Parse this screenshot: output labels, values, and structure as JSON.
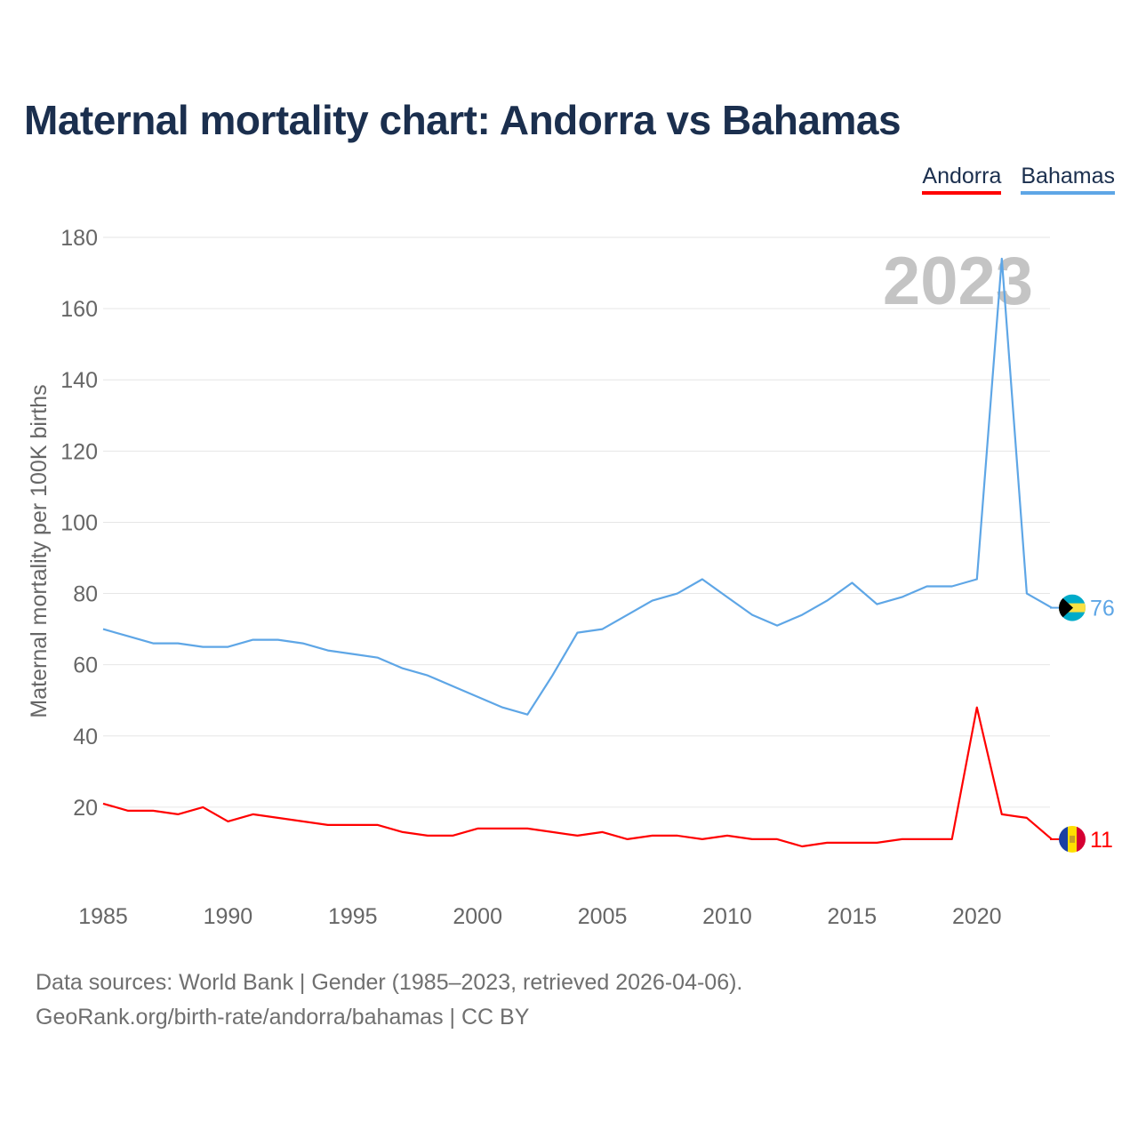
{
  "title": "Maternal mortality chart: Andorra vs Bahamas",
  "legend": {
    "andorra": "Andorra",
    "bahamas": "Bahamas"
  },
  "footer": {
    "line1": "Data sources: World Bank | Gender (1985–2023, retrieved 2026-04-06).",
    "line2": "GeoRank.org/birth-rate/andorra/bahamas | CC BY"
  },
  "colors": {
    "andorra": "#ff0000",
    "bahamas": "#5ea6e6",
    "title": "#1b2f4e",
    "axis_text": "#666666",
    "grid": "#e6e6e6",
    "year_watermark": "#c4c4c4"
  },
  "chart_data": {
    "type": "line",
    "title": "Maternal mortality chart: Andorra vs Bahamas",
    "xlabel": "",
    "ylabel": "Maternal mortality per 100K births",
    "year_label": "2023",
    "x": [
      1985,
      1986,
      1987,
      1988,
      1989,
      1990,
      1991,
      1992,
      1993,
      1994,
      1995,
      1996,
      1997,
      1998,
      1999,
      2000,
      2001,
      2002,
      2003,
      2004,
      2005,
      2006,
      2007,
      2008,
      2009,
      2010,
      2011,
      2012,
      2013,
      2014,
      2015,
      2016,
      2017,
      2018,
      2019,
      2020,
      2021,
      2022,
      2023
    ],
    "xlim": [
      1985,
      2023
    ],
    "ylim": [
      0,
      180
    ],
    "x_ticks": [
      1985,
      1990,
      1995,
      2000,
      2005,
      2010,
      2015,
      2020
    ],
    "y_ticks": [
      20,
      40,
      60,
      80,
      100,
      120,
      140,
      160,
      180
    ],
    "grid": true,
    "series": [
      {
        "name": "Andorra",
        "color": "#ff0000",
        "end_label": "11",
        "values": [
          21,
          19,
          19,
          18,
          20,
          16,
          18,
          17,
          16,
          15,
          15,
          15,
          13,
          12,
          12,
          14,
          14,
          14,
          13,
          12,
          13,
          11,
          12,
          12,
          11,
          12,
          11,
          11,
          9,
          10,
          10,
          10,
          11,
          11,
          11,
          48,
          18,
          17,
          11
        ]
      },
      {
        "name": "Bahamas",
        "color": "#5ea6e6",
        "end_label": "76",
        "values": [
          70,
          68,
          66,
          66,
          65,
          65,
          67,
          67,
          66,
          64,
          63,
          62,
          59,
          57,
          54,
          51,
          48,
          46,
          57,
          69,
          70,
          74,
          78,
          80,
          84,
          79,
          74,
          71,
          74,
          78,
          83,
          77,
          79,
          82,
          82,
          84,
          174,
          80,
          76
        ]
      }
    ]
  }
}
